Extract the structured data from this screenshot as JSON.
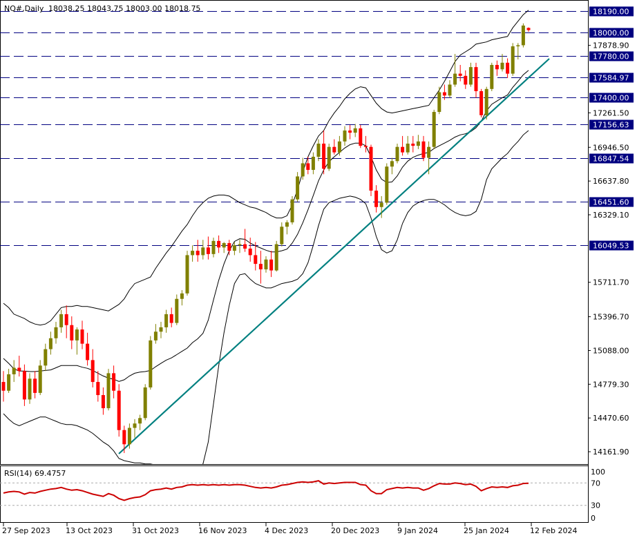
{
  "header": {
    "symbol": "NQ#,Daily",
    "ohlc": "18038.25 18043.75 18003.00 18018.75"
  },
  "colors": {
    "bull": "#808000",
    "bear": "#ff0000",
    "trendline": "#008080",
    "bands": "#000000",
    "levels": "#000080",
    "rsi": "#cc0000"
  },
  "chart_data": {
    "type": "candlestick",
    "ylim": [
      14050,
      18300
    ],
    "x_ticks": [
      "27 Sep 2023",
      "13 Oct 2023",
      "31 Oct 2023",
      "16 Nov 2023",
      "4 Dec 2023",
      "20 Dec 2023",
      "9 Jan 2024",
      "25 Jan 2024",
      "12 Feb 2024"
    ],
    "y_ticks": [
      "17878.90",
      "17261.50",
      "16946.50",
      "16637.80",
      "16329.10",
      "15711.70",
      "15396.70",
      "15088.00",
      "14779.30",
      "14470.60",
      "14161.90"
    ],
    "levels": [
      {
        "value": 18190.0,
        "label": "18190.00"
      },
      {
        "value": 18000.0,
        "label": "18000.00"
      },
      {
        "value": 17780.0,
        "label": "17780.00"
      },
      {
        "value": 17584.97,
        "label": "17584.97"
      },
      {
        "value": 17400.0,
        "label": "17400.00"
      },
      {
        "value": 17156.63,
        "label": "17156.63"
      },
      {
        "value": 16847.54,
        "label": "16847.54"
      },
      {
        "value": 16451.6,
        "label": "16451.60"
      },
      {
        "value": 16049.53,
        "label": "16049.53"
      }
    ],
    "candles": [
      [
        14800,
        14900,
        14620,
        14720
      ],
      [
        14720,
        14920,
        14700,
        14870
      ],
      [
        14870,
        15000,
        14800,
        14930
      ],
      [
        14930,
        15040,
        14850,
        14900
      ],
      [
        14900,
        14960,
        14580,
        14640
      ],
      [
        14640,
        14880,
        14600,
        14830
      ],
      [
        14830,
        14900,
        14650,
        14700
      ],
      [
        14700,
        15000,
        14680,
        14950
      ],
      [
        14950,
        15150,
        14900,
        15100
      ],
      [
        15100,
        15260,
        15050,
        15200
      ],
      [
        15200,
        15350,
        15150,
        15300
      ],
      [
        15300,
        15460,
        15250,
        15420
      ],
      [
        15420,
        15500,
        15200,
        15320
      ],
      [
        15320,
        15400,
        15100,
        15180
      ],
      [
        15180,
        15300,
        15050,
        15280
      ],
      [
        15280,
        15360,
        15100,
        15150
      ],
      [
        15150,
        15250,
        14950,
        15000
      ],
      [
        15000,
        15100,
        14750,
        14800
      ],
      [
        14800,
        14900,
        14620,
        14680
      ],
      [
        14680,
        14750,
        14500,
        14560
      ],
      [
        14560,
        14920,
        14540,
        14880
      ],
      [
        14880,
        14950,
        14650,
        14720
      ],
      [
        14720,
        14780,
        14300,
        14360
      ],
      [
        14360,
        14400,
        14150,
        14230
      ],
      [
        14230,
        14420,
        14190,
        14380
      ],
      [
        14380,
        14460,
        14290,
        14420
      ],
      [
        14420,
        14500,
        14360,
        14470
      ],
      [
        14470,
        14780,
        14450,
        14750
      ],
      [
        14750,
        15220,
        14730,
        15180
      ],
      [
        15180,
        15330,
        15150,
        15260
      ],
      [
        15260,
        15350,
        15200,
        15300
      ],
      [
        15300,
        15460,
        15250,
        15420
      ],
      [
        15420,
        15480,
        15300,
        15340
      ],
      [
        15340,
        15600,
        15320,
        15560
      ],
      [
        15560,
        15640,
        15500,
        15610
      ],
      [
        15610,
        16000,
        15590,
        15960
      ],
      [
        15960,
        16050,
        15900,
        16000
      ],
      [
        16000,
        16100,
        15900,
        15960
      ],
      [
        15960,
        16100,
        15920,
        16030
      ],
      [
        16030,
        16130,
        15920,
        15970
      ],
      [
        15970,
        16120,
        15940,
        16090
      ],
      [
        16090,
        16140,
        15980,
        16030
      ],
      [
        16030,
        16080,
        15980,
        16070
      ],
      [
        16070,
        16100,
        15960,
        16000
      ],
      [
        16000,
        16080,
        15960,
        16050
      ],
      [
        16050,
        16100,
        15980,
        16060
      ],
      [
        16060,
        16200,
        15990,
        16020
      ],
      [
        16020,
        16120,
        15900,
        15960
      ],
      [
        15960,
        16080,
        15820,
        15880
      ],
      [
        15880,
        16000,
        15700,
        15830
      ],
      [
        15830,
        15950,
        15800,
        15920
      ],
      [
        15920,
        16000,
        15760,
        15820
      ],
      [
        15820,
        16090,
        15810,
        16060
      ],
      [
        16060,
        16260,
        16040,
        16220
      ],
      [
        16220,
        16280,
        16150,
        16260
      ],
      [
        16260,
        16500,
        16240,
        16470
      ],
      [
        16470,
        16720,
        16450,
        16680
      ],
      [
        16680,
        16850,
        16650,
        16800
      ],
      [
        16800,
        16860,
        16700,
        16740
      ],
      [
        16740,
        16900,
        16700,
        16860
      ],
      [
        16860,
        17020,
        16820,
        16980
      ],
      [
        16980,
        17100,
        16700,
        16750
      ],
      [
        16750,
        16980,
        16730,
        16950
      ],
      [
        16950,
        17020,
        16880,
        16900
      ],
      [
        16900,
        17050,
        16870,
        17000
      ],
      [
        17000,
        17140,
        16960,
        17100
      ],
      [
        17100,
        17150,
        17020,
        17080
      ],
      [
        17080,
        17160,
        17040,
        17120
      ],
      [
        17120,
        17150,
        16940,
        16960
      ],
      [
        16960,
        17050,
        16900,
        16950
      ],
      [
        16950,
        16970,
        16500,
        16550
      ],
      [
        16550,
        16600,
        16350,
        16400
      ],
      [
        16400,
        16500,
        16300,
        16440
      ],
      [
        16440,
        16800,
        16420,
        16770
      ],
      [
        16770,
        16850,
        16700,
        16820
      ],
      [
        16820,
        16980,
        16800,
        16950
      ],
      [
        16950,
        17050,
        16870,
        16900
      ],
      [
        16900,
        17050,
        16880,
        16980
      ],
      [
        16980,
        17050,
        16900,
        16960
      ],
      [
        16960,
        17060,
        16930,
        17000
      ],
      [
        17000,
        17050,
        16820,
        16850
      ],
      [
        16850,
        17000,
        16700,
        16950
      ],
      [
        16950,
        17290,
        16930,
        17270
      ],
      [
        17270,
        17500,
        17250,
        17450
      ],
      [
        17450,
        17520,
        17380,
        17420
      ],
      [
        17420,
        17560,
        17400,
        17520
      ],
      [
        17520,
        17800,
        17500,
        17620
      ],
      [
        17620,
        17700,
        17550,
        17600
      ],
      [
        17600,
        17650,
        17480,
        17520
      ],
      [
        17520,
        17720,
        17500,
        17680
      ],
      [
        17680,
        17720,
        17400,
        17460
      ],
      [
        17460,
        17480,
        17220,
        17240
      ],
      [
        17240,
        17500,
        17200,
        17480
      ],
      [
        17480,
        17720,
        17460,
        17700
      ],
      [
        17700,
        17740,
        17600,
        17660
      ],
      [
        17660,
        17800,
        17640,
        17720
      ],
      [
        17720,
        17760,
        17580,
        17620
      ],
      [
        17620,
        17900,
        17600,
        17870
      ],
      [
        17870,
        17900,
        17750,
        17880
      ],
      [
        17880,
        18080,
        17860,
        18060
      ],
      [
        18038.25,
        18043.75,
        18003.0,
        18018.75
      ]
    ],
    "rsi": {
      "label": "RSI(14) 69.4757",
      "levels": [
        30,
        70
      ],
      "scale": [
        "100",
        "70",
        "30",
        "0"
      ],
      "values": [
        52,
        54,
        55,
        54,
        50,
        53,
        52,
        55,
        57,
        59,
        60,
        62,
        59,
        57,
        58,
        56,
        53,
        50,
        48,
        46,
        51,
        48,
        42,
        39,
        42,
        44,
        45,
        49,
        56,
        58,
        59,
        61,
        59,
        62,
        63,
        66,
        67,
        66,
        67,
        66,
        67,
        66,
        67,
        66,
        67,
        67,
        66,
        64,
        62,
        61,
        62,
        61,
        63,
        66,
        67,
        69,
        71,
        72,
        71,
        72,
        74,
        68,
        70,
        69,
        70,
        71,
        71,
        71,
        67,
        66,
        56,
        51,
        51,
        58,
        60,
        62,
        61,
        62,
        61,
        61,
        57,
        60,
        65,
        69,
        68,
        68,
        70,
        69,
        67,
        68,
        64,
        56,
        60,
        63,
        62,
        63,
        62,
        65,
        66,
        69,
        69.5
      ]
    },
    "bands": {
      "upper": [
        15520,
        15480,
        15420,
        15400,
        15380,
        15350,
        15330,
        15320,
        15330,
        15360,
        15420,
        15480,
        15490,
        15490,
        15500,
        15490,
        15490,
        15480,
        15470,
        15460,
        15450,
        15480,
        15510,
        15560,
        15640,
        15700,
        15720,
        15740,
        15760,
        15840,
        15910,
        15980,
        16040,
        16110,
        16180,
        16240,
        16320,
        16390,
        16440,
        16480,
        16500,
        16510,
        16510,
        16500,
        16470,
        16440,
        16420,
        16400,
        16390,
        16370,
        16350,
        16320,
        16300,
        16300,
        16320,
        16420,
        16560,
        16720,
        16860,
        16960,
        17050,
        17100,
        17190,
        17260,
        17320,
        17390,
        17440,
        17480,
        17500,
        17490,
        17420,
        17350,
        17300,
        17270,
        17260,
        17270,
        17280,
        17290,
        17300,
        17310,
        17320,
        17330,
        17400,
        17470,
        17550,
        17640,
        17730,
        17790,
        17820,
        17850,
        17890,
        17900,
        17910,
        17930,
        17940,
        17950,
        17960,
        18040,
        18100,
        18160,
        18200
      ],
      "lower": [
        14510,
        14460,
        14420,
        14400,
        14420,
        14440,
        14460,
        14480,
        14480,
        14460,
        14440,
        14420,
        14410,
        14410,
        14400,
        14380,
        14360,
        14330,
        14290,
        14250,
        14220,
        14170,
        14100,
        14080,
        14070,
        14060,
        14060,
        14050,
        14050,
        14040,
        14030,
        14020,
        14000,
        13990,
        13980,
        13980,
        14000,
        14000,
        14050,
        14250,
        14600,
        14950,
        15250,
        15500,
        15700,
        15780,
        15790,
        15740,
        15700,
        15680,
        15660,
        15660,
        15680,
        15700,
        15710,
        15720,
        15740,
        15790,
        15890,
        16050,
        16230,
        16380,
        16440,
        16460,
        16480,
        16490,
        16500,
        16490,
        16470,
        16430,
        16300,
        16130,
        16010,
        15980,
        16000,
        16100,
        16250,
        16350,
        16410,
        16440,
        16460,
        16470,
        16470,
        16450,
        16420,
        16380,
        16350,
        16330,
        16320,
        16330,
        16360,
        16470,
        16650,
        16750,
        16800,
        16850,
        16890,
        16950,
        17000,
        17060,
        17100
      ]
    }
  }
}
